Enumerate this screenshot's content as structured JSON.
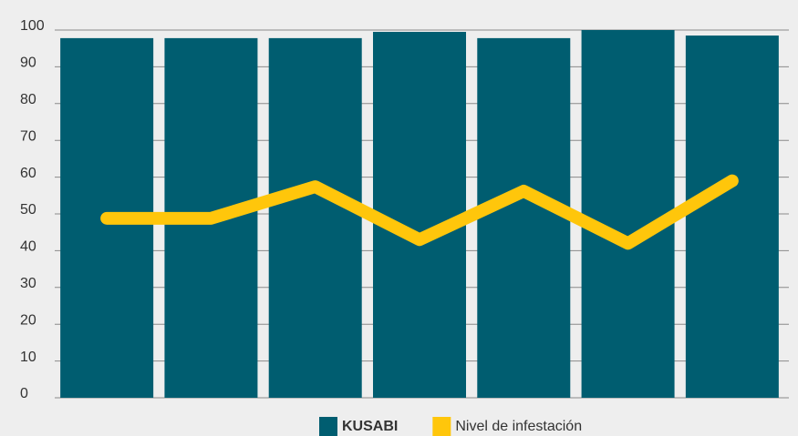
{
  "chart_data": {
    "type": "bar",
    "categories": [
      null,
      null,
      null,
      null,
      null,
      null,
      null
    ],
    "series": [
      {
        "name": "KUSABI",
        "type": "bar",
        "color": "#005d70",
        "values": [
          97.8,
          97.8,
          97.8,
          99.5,
          97.8,
          100,
          98.5
        ]
      },
      {
        "name": "Nivel de infestación",
        "type": "line",
        "color": "#ffc60b",
        "values": [
          48.8,
          48.8,
          57.4,
          43,
          56.2,
          42,
          59
        ]
      }
    ],
    "ylim": [
      0,
      100
    ],
    "yticks": [
      0,
      10,
      20,
      30,
      40,
      50,
      60,
      70,
      80,
      90,
      100
    ],
    "grid": true,
    "legend": "bottom"
  }
}
